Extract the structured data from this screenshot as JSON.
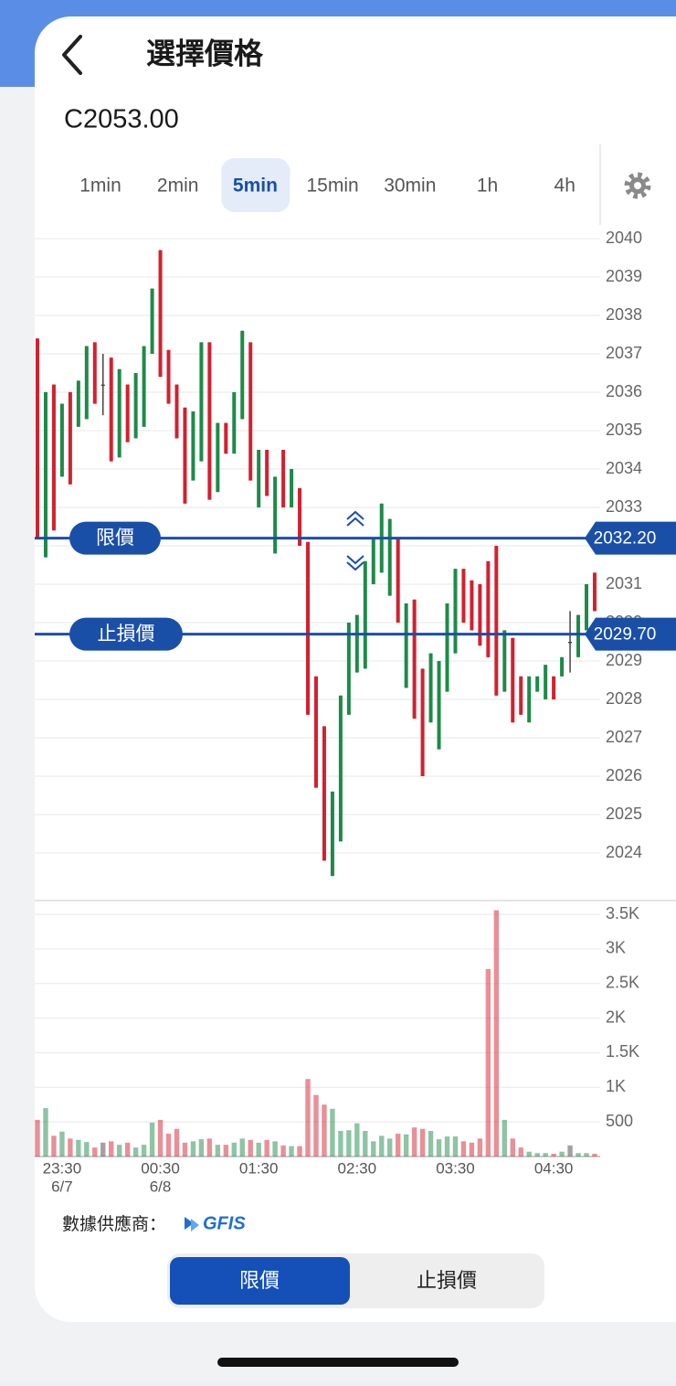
{
  "header": {
    "title": "選擇價格",
    "symbol": "C2053.00"
  },
  "timeframes": {
    "options": [
      "1min",
      "2min",
      "5min",
      "15min",
      "30min",
      "1h",
      "4h"
    ],
    "selected": 2
  },
  "chart_data": {
    "type": "candlestick",
    "categories": [
      null,
      null,
      null,
      "23:30",
      null,
      null,
      null,
      null,
      null,
      null,
      null,
      null,
      null,
      null,
      null,
      "00:30",
      null,
      null,
      null,
      null,
      null,
      null,
      null,
      null,
      null,
      null,
      null,
      "01:30",
      null,
      null,
      null,
      null,
      null,
      null,
      null,
      null,
      null,
      null,
      null,
      "02:30",
      null,
      null,
      null,
      null,
      null,
      null,
      null,
      null,
      null,
      null,
      null,
      "03:30",
      null,
      null,
      null,
      null,
      null,
      null,
      null,
      null,
      null,
      null,
      null,
      "04:30",
      null,
      null,
      null,
      null,
      null
    ],
    "category_dates": [
      null,
      null,
      null,
      "6/7",
      null,
      null,
      null,
      null,
      null,
      null,
      null,
      null,
      null,
      null,
      null,
      "6/8",
      null,
      null,
      null,
      null,
      null,
      null,
      null,
      null,
      null,
      null,
      null,
      null,
      null,
      null,
      null,
      null,
      null,
      null,
      null,
      null,
      null,
      null,
      null,
      null,
      null,
      null,
      null,
      null,
      null,
      null,
      null,
      null,
      null,
      null,
      null,
      null,
      null,
      null,
      null,
      null,
      null,
      null,
      null,
      null,
      null,
      null,
      null,
      null,
      null,
      null,
      null,
      null,
      null
    ],
    "open": [
      2037.4,
      2031.7,
      2036.2,
      2033.8,
      2036.0,
      2035.1,
      2035.3,
      2037.3,
      2036.2,
      2036.9,
      2034.3,
      2036.2,
      2034.8,
      2035.1,
      2037.0,
      2039.7,
      2037.1,
      2036.2,
      2035.6,
      2033.7,
      2034.2,
      2037.3,
      2033.4,
      2035.2,
      2034.4,
      2035.3,
      2037.3,
      2033.0,
      2034.5,
      2031.8,
      2034.5,
      2033.0,
      2033.5,
      2032.1,
      2028.6,
      2027.3,
      2023.4,
      2024.3,
      2027.6,
      2028.7,
      2028.8,
      2031.0,
      2031.3,
      2030.7,
      2032.2,
      2028.3,
      2030.6,
      2028.8,
      2027.4,
      2026.7,
      2028.2,
      2029.2,
      2031.4,
      2031.1,
      2031.0,
      2031.6,
      2032.0,
      2028.2,
      2029.6,
      2028.6,
      2027.4,
      2028.2,
      2028.0,
      2028.6,
      2028.6,
      2029.5,
      2029.1,
      2029.8,
      2031.3
    ],
    "high": [
      2037.4,
      2036.0,
      2036.2,
      2035.7,
      2036.0,
      2036.3,
      2037.2,
      2037.3,
      2037.0,
      2036.9,
      2036.6,
      2036.2,
      2036.5,
      2037.2,
      2038.7,
      2039.7,
      2037.1,
      2036.2,
      2035.6,
      2035.5,
      2037.3,
      2037.3,
      2035.2,
      2035.2,
      2036.0,
      2037.6,
      2037.3,
      2034.5,
      2034.5,
      2033.8,
      2034.5,
      2034.0,
      2033.5,
      2032.1,
      2028.6,
      2027.3,
      2025.6,
      2028.1,
      2030.0,
      2030.2,
      2031.6,
      2032.2,
      2033.1,
      2032.7,
      2032.2,
      2030.5,
      2030.6,
      2028.8,
      2029.2,
      2029.0,
      2030.5,
      2031.4,
      2031.4,
      2031.1,
      2031.0,
      2031.6,
      2032.0,
      2029.8,
      2029.6,
      2028.6,
      2028.6,
      2028.6,
      2028.9,
      2028.6,
      2029.1,
      2030.3,
      2030.2,
      2031.0,
      2031.3
    ],
    "low": [
      2032.2,
      2031.7,
      2032.4,
      2033.8,
      2033.6,
      2035.1,
      2035.3,
      2035.7,
      2035.4,
      2034.2,
      2034.3,
      2034.7,
      2034.8,
      2035.1,
      2037.0,
      2036.4,
      2035.7,
      2034.8,
      2033.1,
      2033.7,
      2034.2,
      2033.2,
      2033.4,
      2034.4,
      2034.4,
      2035.3,
      2033.7,
      2033.0,
      2033.3,
      2031.8,
      2033.0,
      2033.0,
      2032.0,
      2027.6,
      2025.7,
      2023.8,
      2023.4,
      2024.3,
      2027.6,
      2028.7,
      2028.8,
      2031.0,
      2031.3,
      2030.7,
      2030.0,
      2028.3,
      2027.5,
      2026.0,
      2027.4,
      2026.7,
      2028.2,
      2029.2,
      2030.0,
      2029.8,
      2029.4,
      2029.1,
      2028.1,
      2028.2,
      2027.4,
      2027.6,
      2027.4,
      2028.2,
      2028.0,
      2028.0,
      2028.6,
      2028.7,
      2029.1,
      2029.8,
      2030.3
    ],
    "close": [
      2032.2,
      2036.0,
      2032.4,
      2035.7,
      2033.6,
      2036.3,
      2037.2,
      2035.7,
      2036.2,
      2034.2,
      2036.6,
      2034.7,
      2036.5,
      2037.2,
      2038.7,
      2036.4,
      2035.7,
      2034.8,
      2033.1,
      2035.5,
      2037.3,
      2033.2,
      2035.2,
      2034.4,
      2036.0,
      2037.6,
      2033.7,
      2034.5,
      2033.3,
      2033.8,
      2033.0,
      2034.0,
      2032.0,
      2027.6,
      2025.7,
      2023.8,
      2025.6,
      2028.1,
      2030.0,
      2030.2,
      2031.6,
      2032.2,
      2033.1,
      2032.7,
      2030.0,
      2030.5,
      2027.5,
      2026.0,
      2029.2,
      2029.0,
      2030.5,
      2031.4,
      2030.0,
      2029.8,
      2029.4,
      2029.1,
      2028.1,
      2029.8,
      2027.4,
      2027.6,
      2028.6,
      2028.6,
      2028.9,
      2028.0,
      2029.1,
      2029.5,
      2030.2,
      2031.0,
      2030.3
    ],
    "volume": [
      530,
      700,
      300,
      360,
      260,
      240,
      210,
      130,
      200,
      220,
      170,
      200,
      130,
      170,
      490,
      530,
      330,
      400,
      200,
      220,
      250,
      260,
      170,
      170,
      200,
      260,
      240,
      200,
      240,
      220,
      160,
      150,
      150,
      1120,
      890,
      750,
      690,
      370,
      380,
      480,
      370,
      220,
      300,
      260,
      330,
      320,
      420,
      400,
      370,
      250,
      290,
      290,
      220,
      200,
      260,
      2710,
      3560,
      530,
      260,
      130,
      70,
      50,
      50,
      40,
      70,
      160,
      50,
      50,
      40
    ],
    "up_color": "#1e8a49",
    "down_color": "#d3202f",
    "flat_color": "#444444",
    "level_color": "#1a4fa8",
    "ylim": [
      2023,
      2040
    ],
    "yticks": [
      2024,
      2025,
      2026,
      2027,
      2028,
      2029,
      2030,
      2031,
      2032,
      2033,
      2034,
      2035,
      2036,
      2037,
      2038,
      2039,
      2040
    ],
    "volume_ylim": [
      0,
      3700
    ],
    "volume_yticks": [
      500,
      {
        "value": 1000,
        "label": "1K"
      },
      {
        "value": 1500,
        "label": "1.5K"
      },
      {
        "value": 2000,
        "label": "2K"
      },
      {
        "value": 2500,
        "label": "2.5K"
      },
      {
        "value": 3000,
        "label": "3K"
      },
      {
        "value": 3500,
        "label": "3.5K"
      }
    ],
    "grid": true,
    "levels": [
      {
        "name": "限價",
        "value": 2032.2,
        "value_label": "2032.20"
      },
      {
        "name": "止損價",
        "value": 2029.7,
        "value_label": "2029.70"
      }
    ]
  },
  "footer": {
    "provider_label": "數據供應商：",
    "provider": "GFIS"
  },
  "order_type_toggle": {
    "options": [
      "限價",
      "止損價"
    ],
    "selected": 0
  }
}
